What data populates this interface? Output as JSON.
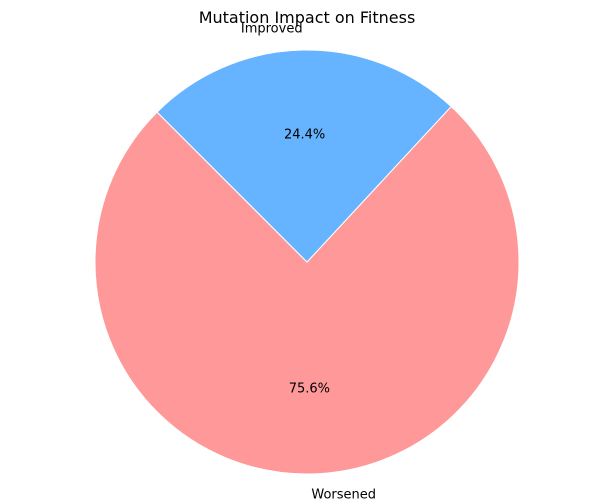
{
  "chart_data": {
    "type": "pie",
    "title": "Mutation Impact on Fitness",
    "slices": [
      {
        "label": "Worsened",
        "value": 75.6,
        "display": "75.6%",
        "color": "#ff9999"
      },
      {
        "label": "Improved",
        "value": 24.4,
        "display": "24.4%",
        "color": "#66b3ff"
      }
    ],
    "start_angle_deg": 135,
    "direction": "counterclockwise"
  }
}
